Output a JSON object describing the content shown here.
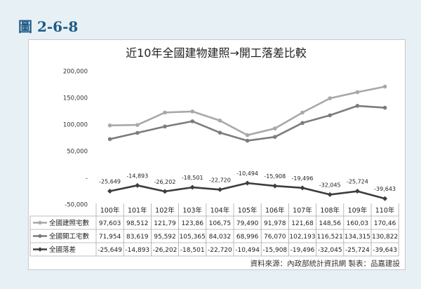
{
  "figure_label": "圖 2-6-8",
  "source_note": "資料來源：內政部統計資訊網   製表：品嘉建設",
  "chart_data": {
    "type": "line",
    "title": "近10年全國建物建照→開工落差比較",
    "categories": [
      "100年",
      "101年",
      "102年",
      "103年",
      "104年",
      "105年",
      "106年",
      "107年",
      "108年",
      "109年",
      "110年"
    ],
    "y_ticks": [
      "200,000",
      "150,000",
      "100,000",
      "50,000",
      "-",
      "-50,000"
    ],
    "ylim": [
      -50000,
      200000
    ],
    "grid": false,
    "legend": "table-left",
    "series": [
      {
        "name": "全國建照宅數",
        "color": "#a8a8a8",
        "marker": "circle",
        "values": [
          97603,
          98512,
          121790,
          123860,
          106750,
          79490,
          91978,
          121680,
          148560,
          160030,
          170460
        ],
        "labels": [
          "97,603",
          "98,512",
          "121,79",
          "123,86",
          "106,75",
          "79,490",
          "91,978",
          "121,68",
          "148,56",
          "160,03",
          "170,46"
        ]
      },
      {
        "name": "全國開工宅數",
        "color": "#7c7c7c",
        "marker": "circle",
        "values": [
          71954,
          83619,
          95592,
          105365,
          84032,
          68996,
          76070,
          102193,
          116521,
          134315,
          130822
        ],
        "labels": [
          "71,954",
          "83,619",
          "95,592",
          "105,365",
          "84,032",
          "68,996",
          "76,070",
          "102,193",
          "116,521",
          "134,315",
          "130,822"
        ]
      },
      {
        "name": "全國落差",
        "color": "#3d3d3d",
        "marker": "diamond",
        "values": [
          -25649,
          -14893,
          -26202,
          -18501,
          -22720,
          -10494,
          -15908,
          -19496,
          -32045,
          -25724,
          -39643
        ],
        "labels": [
          "-25,649",
          "-14,893",
          "-26,202",
          "-18,501",
          "-22,720",
          "-10,494",
          "-15,908",
          "-19,496",
          "-32,045",
          "-25,724",
          "-39,643"
        ]
      }
    ]
  }
}
